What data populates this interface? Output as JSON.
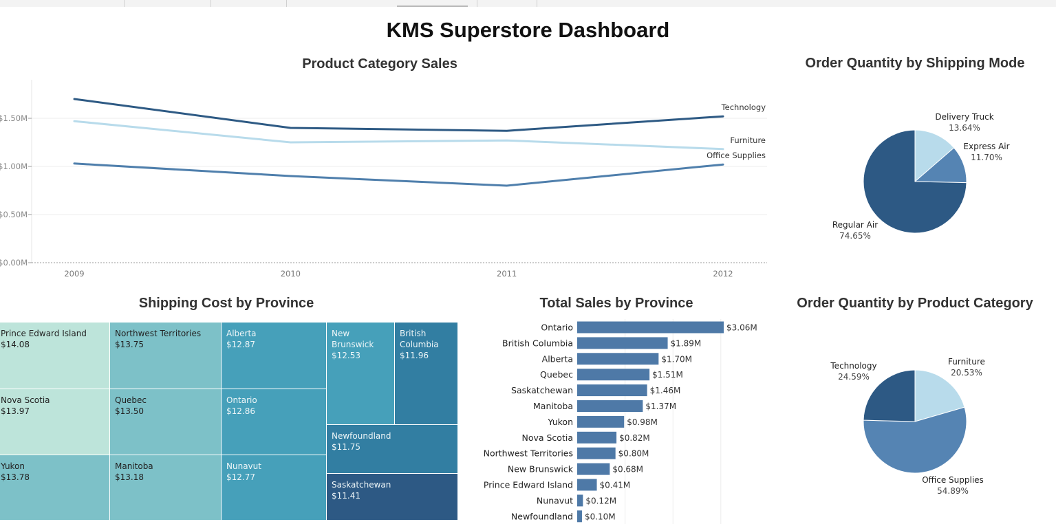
{
  "dashboard_title": "KMS Superstore Dashboard",
  "chart_data": [
    {
      "id": "category_sales",
      "type": "line",
      "title": "Product Category Sales",
      "x": [
        "2009",
        "2010",
        "2011",
        "2012"
      ],
      "series": [
        {
          "name": "Technology",
          "values": [
            1.7,
            1.4,
            1.37,
            1.52
          ],
          "color": "#2e5a84"
        },
        {
          "name": "Furniture",
          "values": [
            1.47,
            1.25,
            1.27,
            1.18
          ],
          "color": "#b8dbeb"
        },
        {
          "name": "Office Supplies",
          "values": [
            1.03,
            0.9,
            0.8,
            1.02
          ],
          "color": "#4f7fac"
        }
      ],
      "y_ticks": [
        {
          "v": 0.0,
          "label": "$0.00M"
        },
        {
          "v": 0.5,
          "label": "$0.50M"
        },
        {
          "v": 1.0,
          "label": "$1.00M"
        },
        {
          "v": 1.5,
          "label": "$1.50M"
        }
      ],
      "ylim": [
        0,
        1.85
      ],
      "grid": true
    },
    {
      "id": "shipping_mode",
      "type": "pie",
      "title": "Order Quantity by Shipping Mode",
      "slices": [
        {
          "name": "Delivery Truck",
          "value": 13.64,
          "label": "13.64%",
          "color": "#b8dbeb"
        },
        {
          "name": "Express Air",
          "value": 11.7,
          "label": "11.70%",
          "color": "#5584b3"
        },
        {
          "name": "Regular Air",
          "value": 74.65,
          "label": "74.65%",
          "color": "#2d5984"
        }
      ]
    },
    {
      "id": "shipping_cost",
      "type": "treemap",
      "title": "Shipping Cost by Province",
      "items": [
        {
          "name": "Prince Edward Island",
          "value": "$14.08",
          "color": "#bde4da",
          "text": "#222222"
        },
        {
          "name": "Nova Scotia",
          "value": "$13.97",
          "color": "#bde4da",
          "text": "#222222"
        },
        {
          "name": "Yukon",
          "value": "$13.78",
          "color": "#7dc1c8",
          "text": "#222222"
        },
        {
          "name": "Northwest Territories",
          "value": "$13.75",
          "color": "#7dc1c8",
          "text": "#222222"
        },
        {
          "name": "Quebec",
          "value": "$13.50",
          "color": "#7dc1c8",
          "text": "#222222"
        },
        {
          "name": "Manitoba",
          "value": "$13.18",
          "color": "#7dc1c8",
          "text": "#222222"
        },
        {
          "name": "Alberta",
          "value": "$12.87",
          "color": "#46a0ba",
          "text": "#eef6f8"
        },
        {
          "name": "Ontario",
          "value": "$12.86",
          "color": "#46a0ba",
          "text": "#eef6f8"
        },
        {
          "name": "Nunavut",
          "value": "$12.77",
          "color": "#46a0ba",
          "text": "#eef6f8"
        },
        {
          "name": "New Brunswick",
          "value": "$12.53",
          "color": "#46a0ba",
          "text": "#eef6f8"
        },
        {
          "name": "British Columbia",
          "value": "$11.96",
          "color": "#327ea2",
          "text": "#eef6f8"
        },
        {
          "name": "Newfoundland",
          "value": "$11.75",
          "color": "#327ea2",
          "text": "#eef6f8"
        },
        {
          "name": "Saskatchewan",
          "value": "$11.41",
          "color": "#2d5984",
          "text": "#eef6f8"
        }
      ]
    },
    {
      "id": "sales_by_province",
      "type": "bar",
      "orientation": "horizontal",
      "title": "Total Sales by Province",
      "categories": [
        "Ontario",
        "British Columbia",
        "Alberta",
        "Quebec",
        "Saskatchewan",
        "Manitoba",
        "Yukon",
        "Nova Scotia",
        "Northwest Territories",
        "New Brunswick",
        "Prince Edward Island",
        "Nunavut",
        "Newfoundland"
      ],
      "values": [
        3.06,
        1.89,
        1.7,
        1.51,
        1.46,
        1.37,
        0.98,
        0.82,
        0.8,
        0.68,
        0.41,
        0.12,
        0.1
      ],
      "labels": [
        "$3.06M",
        "$1.89M",
        "$1.70M",
        "$1.51M",
        "$1.46M",
        "$1.37M",
        "$0.98M",
        "$0.82M",
        "$0.80M",
        "$0.68M",
        "$0.41M",
        "$0.12M",
        "$0.10M"
      ],
      "color": "#4e79a7",
      "xlim": [
        0,
        3.3
      ]
    },
    {
      "id": "product_category",
      "type": "pie",
      "title": "Order Quantity by Product Category",
      "slices": [
        {
          "name": "Furniture",
          "value": 20.53,
          "label": "20.53%",
          "color": "#b8dbeb"
        },
        {
          "name": "Office Supplies",
          "value": 54.89,
          "label": "54.89%",
          "color": "#5584b3"
        },
        {
          "name": "Technology",
          "value": 24.59,
          "label": "24.59%",
          "color": "#2d5984"
        }
      ]
    }
  ]
}
